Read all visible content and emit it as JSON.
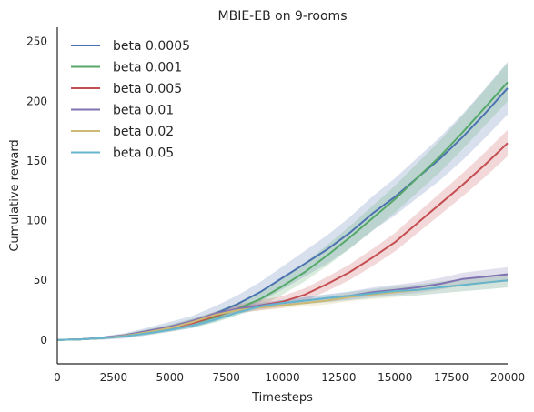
{
  "chart_data": {
    "type": "line",
    "title": "MBIE-EB on 9-rooms",
    "xlabel": "Timesteps",
    "ylabel": "Cumulative reward",
    "xlim": [
      0,
      20000
    ],
    "ylim": [
      -20,
      262
    ],
    "xticks": [
      0,
      2500,
      5000,
      7500,
      10000,
      12500,
      15000,
      17500,
      20000
    ],
    "yticks": [
      0,
      50,
      100,
      150,
      200,
      250
    ],
    "grid": false,
    "legend_position": "top-left",
    "x": [
      0,
      1000,
      2000,
      3000,
      4000,
      5000,
      6000,
      7000,
      8000,
      9000,
      10000,
      11000,
      12000,
      13000,
      14000,
      15000,
      16000,
      17000,
      18000,
      19000,
      20000
    ],
    "series": [
      {
        "name": "beta 0.0005",
        "color": "#4c72b0",
        "values": [
          0,
          0.5,
          1.5,
          3.5,
          7,
          11,
          15,
          22,
          30,
          40,
          52,
          64,
          76,
          90,
          106,
          120,
          136,
          152,
          170,
          190,
          211
        ],
        "band": 22
      },
      {
        "name": "beta 0.001",
        "color": "#55a868",
        "values": [
          0,
          0.5,
          1.5,
          3.5,
          6.5,
          10,
          14,
          19,
          26,
          34,
          45,
          57,
          71,
          86,
          102,
          118,
          136,
          154,
          174,
          195,
          216
        ],
        "band": 16
      },
      {
        "name": "beta 0.005",
        "color": "#c44e52",
        "values": [
          0,
          0.5,
          1.5,
          3.5,
          6.5,
          10,
          14,
          20,
          26,
          29,
          32,
          38,
          47,
          57,
          69,
          82,
          98,
          114,
          130,
          147,
          165
        ],
        "band": 11
      },
      {
        "name": "beta 0.01",
        "color": "#8172b2",
        "values": [
          0,
          0.5,
          2,
          4,
          7.5,
          11,
          16,
          22,
          26,
          29,
          31,
          33,
          35,
          37,
          40,
          42,
          44,
          47,
          51,
          53,
          55
        ],
        "band": 6
      },
      {
        "name": "beta 0.02",
        "color": "#ccb974",
        "values": [
          0,
          0.5,
          1.5,
          3.5,
          6.5,
          10,
          15,
          21,
          25,
          27,
          29,
          31,
          33,
          36,
          38,
          40,
          42,
          44,
          46,
          48,
          50
        ],
        "band": 6
      },
      {
        "name": "beta 0.05",
        "color": "#64b5cd",
        "values": [
          0,
          0.5,
          1.5,
          3,
          5.5,
          8.5,
          12,
          17,
          23,
          28,
          31,
          33,
          35,
          37,
          39,
          41,
          42,
          44,
          46,
          48,
          50
        ],
        "band": 6
      }
    ]
  }
}
